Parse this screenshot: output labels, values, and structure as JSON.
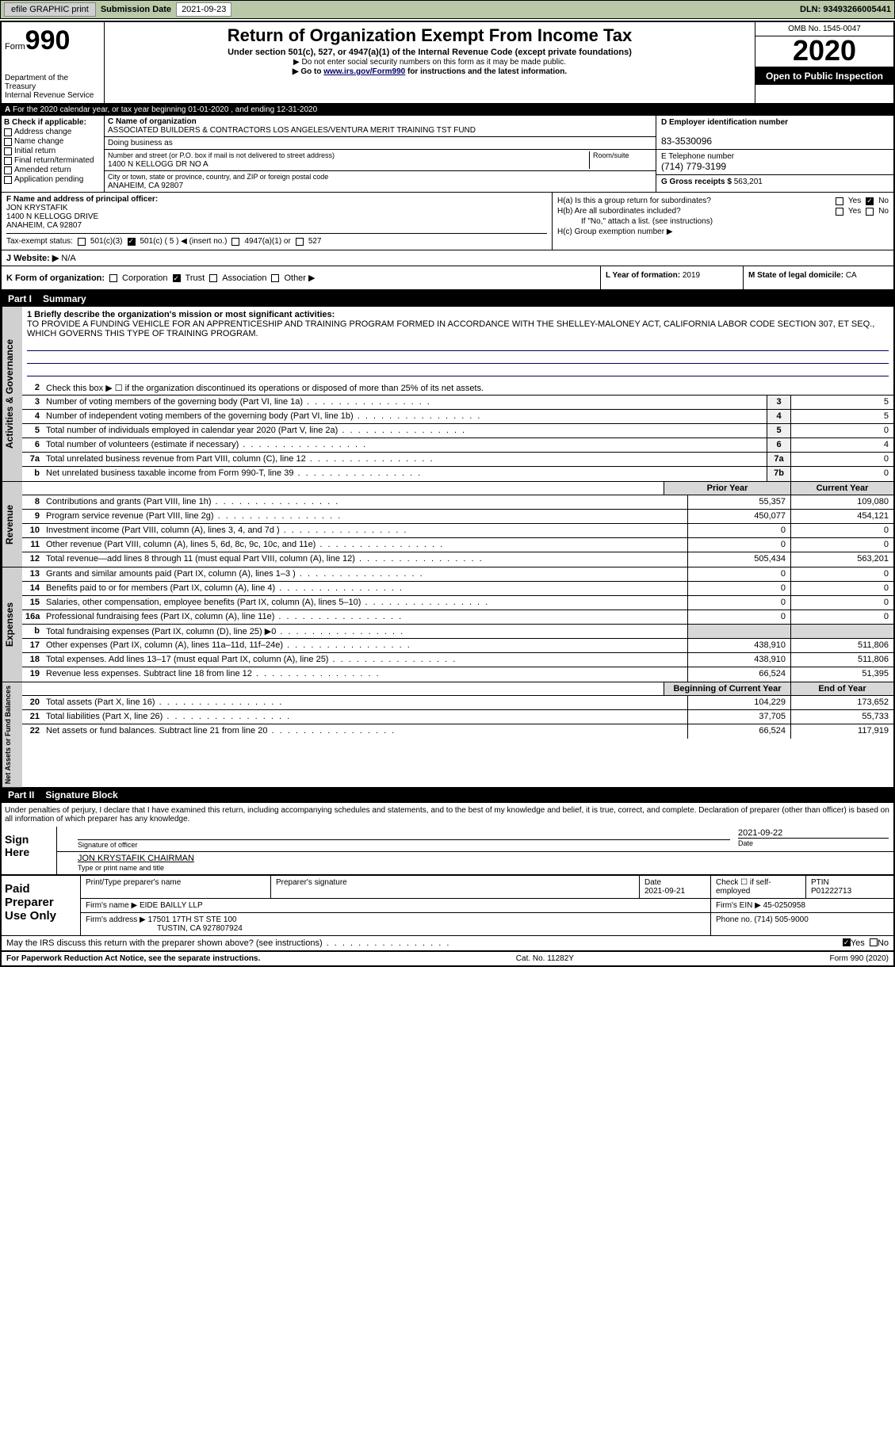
{
  "topbar": {
    "efile": "efile GRAPHIC print",
    "sub_label": "Submission Date",
    "sub_date": "2021-09-23",
    "dln_label": "DLN:",
    "dln": "93493266005441"
  },
  "header": {
    "form_word": "Form",
    "form_num": "990",
    "dept": "Department of the Treasury\nInternal Revenue Service",
    "title": "Return of Organization Exempt From Income Tax",
    "sub1": "Under section 501(c), 527, or 4947(a)(1) of the Internal Revenue Code (except private foundations)",
    "sub2": "▶ Do not enter social security numbers on this form as it may be made public.",
    "sub3_pre": "▶ Go to ",
    "sub3_link": "www.irs.gov/Form990",
    "sub3_post": " for instructions and the latest information.",
    "omb": "OMB No. 1545-0047",
    "year": "2020",
    "open": "Open to Public Inspection"
  },
  "A": {
    "text": "For the 2020 calendar year, or tax year beginning 01-01-2020    , and ending 12-31-2020"
  },
  "B": {
    "label": "B Check if applicable:",
    "items": [
      "Address change",
      "Name change",
      "Initial return",
      "Final return/terminated",
      "Amended return",
      "Application pending"
    ]
  },
  "C": {
    "name_lbl": "C Name of organization",
    "name": "ASSOCIATED BUILDERS & CONTRACTORS LOS ANGELES/VENTURA MERIT TRAINING TST FUND",
    "dba_lbl": "Doing business as",
    "street_lbl": "Number and street (or P.O. box if mail is not delivered to street address)",
    "room_lbl": "Room/suite",
    "street": "1400 N KELLOGG DR NO A",
    "city_lbl": "City or town, state or province, country, and ZIP or foreign postal code",
    "city": "ANAHEIM, CA  92807"
  },
  "D": {
    "lbl": "D Employer identification number",
    "val": "83-3530096"
  },
  "E": {
    "lbl": "E Telephone number",
    "val": "(714) 779-3199"
  },
  "G": {
    "lbl": "G Gross receipts $",
    "val": "563,201"
  },
  "F": {
    "lbl": "F  Name and address of principal officer:",
    "name": "JON KRYSTAFIK",
    "addr1": "1400 N KELLOGG DRIVE",
    "addr2": "ANAHEIM, CA  92807"
  },
  "H": {
    "a": "H(a)  Is this a group return for subordinates?",
    "b": "H(b)  Are all subordinates included?",
    "b_note": "If \"No,\" attach a list. (see instructions)",
    "c": "H(c)  Group exemption number ▶",
    "yes": "Yes",
    "no": "No"
  },
  "I": {
    "lbl": "Tax-exempt status:",
    "opts": [
      "501(c)(3)",
      "501(c) ( 5 ) ◀ (insert no.)",
      "4947(a)(1) or",
      "527"
    ]
  },
  "J": {
    "lbl": "J   Website: ▶",
    "val": "N/A"
  },
  "K": {
    "lbl": "K Form of organization:",
    "opts": [
      "Corporation",
      "Trust",
      "Association",
      "Other ▶"
    ]
  },
  "L": {
    "lbl": "L Year of formation:",
    "val": "2019"
  },
  "M": {
    "lbl": "M State of legal domicile:",
    "val": "CA"
  },
  "part1": {
    "num": "Part I",
    "title": "Summary"
  },
  "s1": {
    "l1_lbl": "1  Briefly describe the organization's mission or most significant activities:",
    "l1_txt": "TO PROVIDE A FUNDING VEHICLE FOR AN APPRENTICESHIP AND TRAINING PROGRAM FORMED IN ACCORDANCE WITH THE SHELLEY-MALONEY ACT, CALIFORNIA LABOR CODE SECTION 307, ET SEQ., WHICH GOVERNS THIS TYPE OF TRAINING PROGRAM.",
    "l2": "Check this box ▶ ☐  if the organization discontinued its operations or disposed of more than 25% of its net assets.",
    "rows": [
      {
        "n": "3",
        "t": "Number of voting members of the governing body (Part VI, line 1a)",
        "b": "3",
        "v": "5"
      },
      {
        "n": "4",
        "t": "Number of independent voting members of the governing body (Part VI, line 1b)",
        "b": "4",
        "v": "5"
      },
      {
        "n": "5",
        "t": "Total number of individuals employed in calendar year 2020 (Part V, line 2a)",
        "b": "5",
        "v": "0"
      },
      {
        "n": "6",
        "t": "Total number of volunteers (estimate if necessary)",
        "b": "6",
        "v": "4"
      },
      {
        "n": "7a",
        "t": "Total unrelated business revenue from Part VIII, column (C), line 12",
        "b": "7a",
        "v": "0"
      },
      {
        "n": "b",
        "t": "Net unrelated business taxable income from Form 990-T, line 39",
        "b": "7b",
        "v": "0"
      }
    ]
  },
  "cols": {
    "py": "Prior Year",
    "cy": "Current Year",
    "boy": "Beginning of Current Year",
    "eoy": "End of Year"
  },
  "rev": {
    "label": "Revenue",
    "rows": [
      {
        "n": "8",
        "t": "Contributions and grants (Part VIII, line 1h)",
        "py": "55,357",
        "cy": "109,080"
      },
      {
        "n": "9",
        "t": "Program service revenue (Part VIII, line 2g)",
        "py": "450,077",
        "cy": "454,121"
      },
      {
        "n": "10",
        "t": "Investment income (Part VIII, column (A), lines 3, 4, and 7d )",
        "py": "0",
        "cy": "0"
      },
      {
        "n": "11",
        "t": "Other revenue (Part VIII, column (A), lines 5, 6d, 8c, 9c, 10c, and 11e)",
        "py": "0",
        "cy": "0"
      },
      {
        "n": "12",
        "t": "Total revenue—add lines 8 through 11 (must equal Part VIII, column (A), line 12)",
        "py": "505,434",
        "cy": "563,201"
      }
    ]
  },
  "exp": {
    "label": "Expenses",
    "rows": [
      {
        "n": "13",
        "t": "Grants and similar amounts paid (Part IX, column (A), lines 1–3 )",
        "py": "0",
        "cy": "0"
      },
      {
        "n": "14",
        "t": "Benefits paid to or for members (Part IX, column (A), line 4)",
        "py": "0",
        "cy": "0"
      },
      {
        "n": "15",
        "t": "Salaries, other compensation, employee benefits (Part IX, column (A), lines 5–10)",
        "py": "0",
        "cy": "0"
      },
      {
        "n": "16a",
        "t": "Professional fundraising fees (Part IX, column (A), line 11e)",
        "py": "0",
        "cy": "0"
      },
      {
        "n": "b",
        "t": "Total fundraising expenses (Part IX, column (D), line 25) ▶0",
        "py": "",
        "cy": "",
        "shade": true
      },
      {
        "n": "17",
        "t": "Other expenses (Part IX, column (A), lines 11a–11d, 11f–24e)",
        "py": "438,910",
        "cy": "511,806"
      },
      {
        "n": "18",
        "t": "Total expenses. Add lines 13–17 (must equal Part IX, column (A), line 25)",
        "py": "438,910",
        "cy": "511,806"
      },
      {
        "n": "19",
        "t": "Revenue less expenses. Subtract line 18 from line 12",
        "py": "66,524",
        "cy": "51,395"
      }
    ]
  },
  "net": {
    "label": "Net Assets or Fund Balances",
    "rows": [
      {
        "n": "20",
        "t": "Total assets (Part X, line 16)",
        "py": "104,229",
        "cy": "173,652"
      },
      {
        "n": "21",
        "t": "Total liabilities (Part X, line 26)",
        "py": "37,705",
        "cy": "55,733"
      },
      {
        "n": "22",
        "t": "Net assets or fund balances. Subtract line 21 from line 20",
        "py": "66,524",
        "cy": "117,919"
      }
    ]
  },
  "part2": {
    "num": "Part II",
    "title": "Signature Block"
  },
  "sig": {
    "decl": "Under penalties of perjury, I declare that I have examined this return, including accompanying schedules and statements, and to the best of my knowledge and belief, it is true, correct, and complete. Declaration of preparer (other than officer) is based on all information of which preparer has any knowledge.",
    "sign_here": "Sign Here",
    "sig_officer": "Signature of officer",
    "date": "2021-09-22",
    "date_lbl": "Date",
    "name": "JON KRYSTAFIK  CHAIRMAN",
    "name_lbl": "Type or print name and title"
  },
  "paid": {
    "label": "Paid Preparer Use Only",
    "h": [
      "Print/Type preparer's name",
      "Preparer's signature",
      "Date",
      "",
      "PTIN"
    ],
    "date": "2021-09-21",
    "check_lbl": "Check ☐  if self-employed",
    "ptin": "P01222713",
    "firm_lbl": "Firm's name    ▶",
    "firm": "EIDE BAILLY LLP",
    "ein_lbl": "Firm's EIN ▶",
    "ein": "45-0250958",
    "addr_lbl": "Firm's address ▶",
    "addr": "17501 17TH ST STE 100",
    "addr2": "TUSTIN, CA  927807924",
    "phone_lbl": "Phone no.",
    "phone": "(714) 505-9000",
    "discuss": "May the IRS discuss this return with the preparer shown above? (see instructions)"
  },
  "footer": {
    "l": "For Paperwork Reduction Act Notice, see the separate instructions.",
    "m": "Cat. No. 11282Y",
    "r": "Form 990 (2020)"
  }
}
